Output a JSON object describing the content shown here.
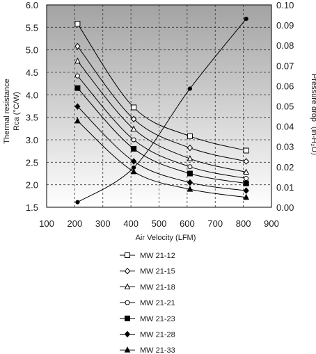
{
  "chart_data": {
    "type": "line",
    "xlabel": "Air Velocity (LFM)",
    "ylabel_left_line1": "Thermal resistance",
    "ylabel_left_line2": "Rca (°C/W)",
    "ylabel_right": "Pressure drop（in-H₂O）",
    "xlim": [
      100,
      900
    ],
    "ylim_left": [
      1.5,
      6.0
    ],
    "ylim_right": [
      0.0,
      0.1
    ],
    "x_ticks": [
      "100",
      "200",
      "300",
      "400",
      "500",
      "600",
      "700",
      "800",
      "900"
    ],
    "y_left_ticks": [
      "1.5",
      "2.0",
      "2.5",
      "3.0",
      "3.5",
      "4.0",
      "4.5",
      "5.0",
      "5.5",
      "6.0"
    ],
    "y_right_ticks": [
      "0.00",
      "0.01",
      "0.02",
      "0.03",
      "0.04",
      "0.05",
      "0.06",
      "0.07",
      "0.08",
      "0.09",
      "0.10"
    ],
    "grid": true,
    "background": "gradient grey (dark top, light bottom)",
    "x": [
      210,
      410,
      610,
      810
    ],
    "series": [
      {
        "name": "MW 21-12",
        "marker": "open-square",
        "values": [
          5.58,
          3.72,
          3.08,
          2.76
        ]
      },
      {
        "name": "MW 21-15",
        "marker": "open-diamond",
        "values": [
          5.08,
          3.46,
          2.82,
          2.52
        ]
      },
      {
        "name": "MW 21-18",
        "marker": "open-triangle",
        "values": [
          4.75,
          3.24,
          2.58,
          2.28
        ]
      },
      {
        "name": "MW 21-21",
        "marker": "open-circle",
        "values": [
          4.42,
          3.0,
          2.4,
          2.14
        ]
      },
      {
        "name": "MW 21-23",
        "marker": "filled-square",
        "values": [
          4.15,
          2.8,
          2.25,
          2.03
        ]
      },
      {
        "name": "MW 21-28",
        "marker": "filled-diamond",
        "values": [
          3.74,
          2.52,
          2.05,
          1.87
        ]
      },
      {
        "name": "MW 21-33",
        "marker": "filled-triangle",
        "values": [
          3.42,
          2.29,
          1.9,
          1.72
        ]
      }
    ],
    "pressure_drop": {
      "axis": "right",
      "marker": "filled-circle",
      "values": [
        0.0025,
        0.0196,
        0.0586,
        0.0931
      ]
    }
  },
  "colors": {
    "line": "#000000",
    "grid": "#333333",
    "bg_top": "#a3a3a3",
    "bg_bottom": "#ffffff"
  }
}
